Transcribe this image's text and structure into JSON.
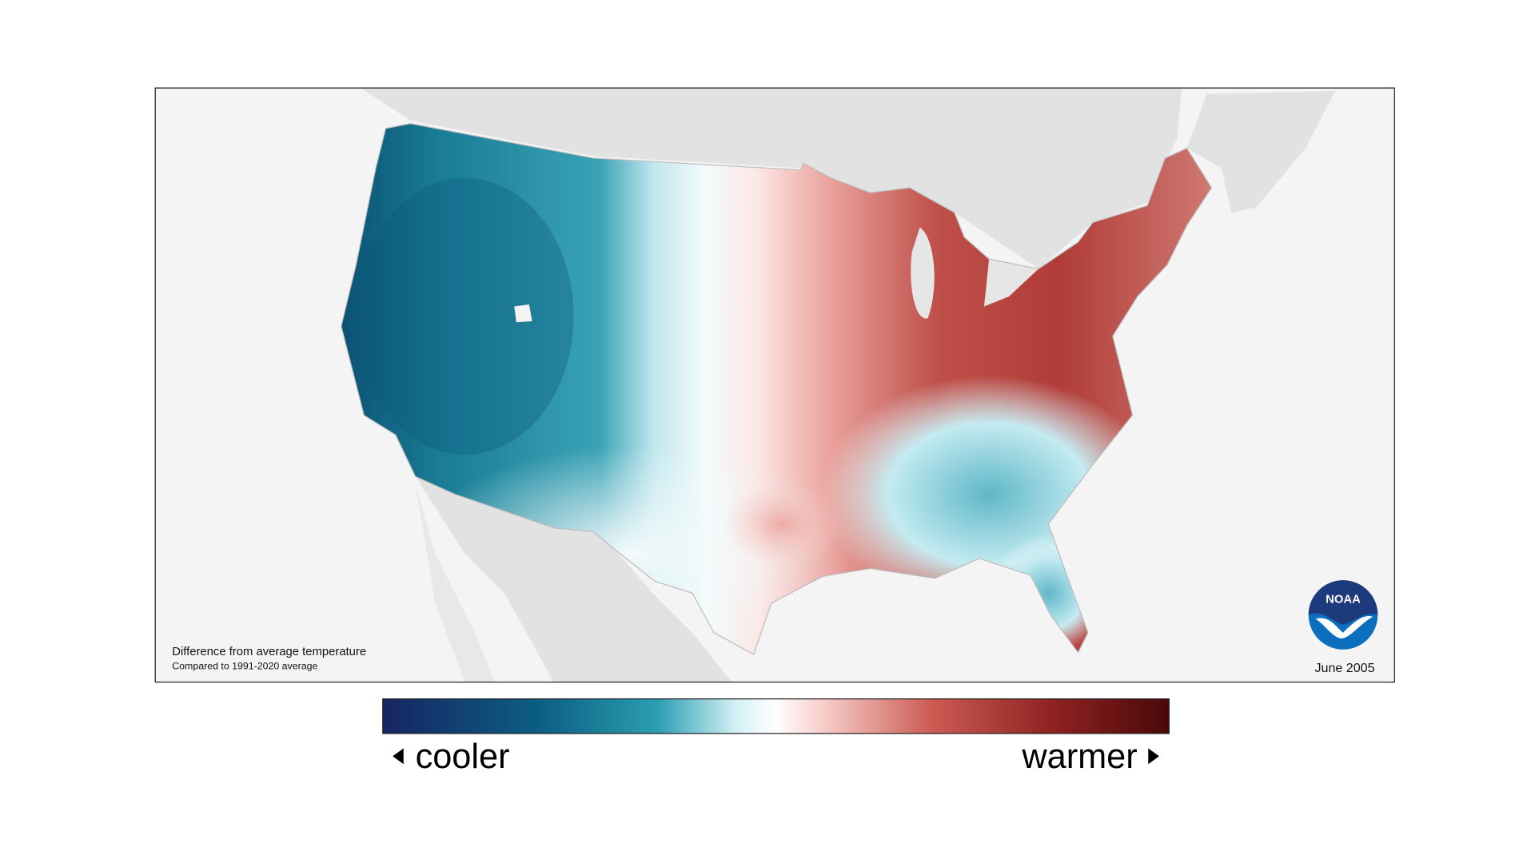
{
  "legend_note": {
    "title": "Difference from average temperature",
    "subtitle": "Compared to 1991-2020 average"
  },
  "date": "June 2005",
  "logo": "NOAA",
  "colorbar": {
    "low_label": "cooler",
    "high_label": "warmer"
  }
}
